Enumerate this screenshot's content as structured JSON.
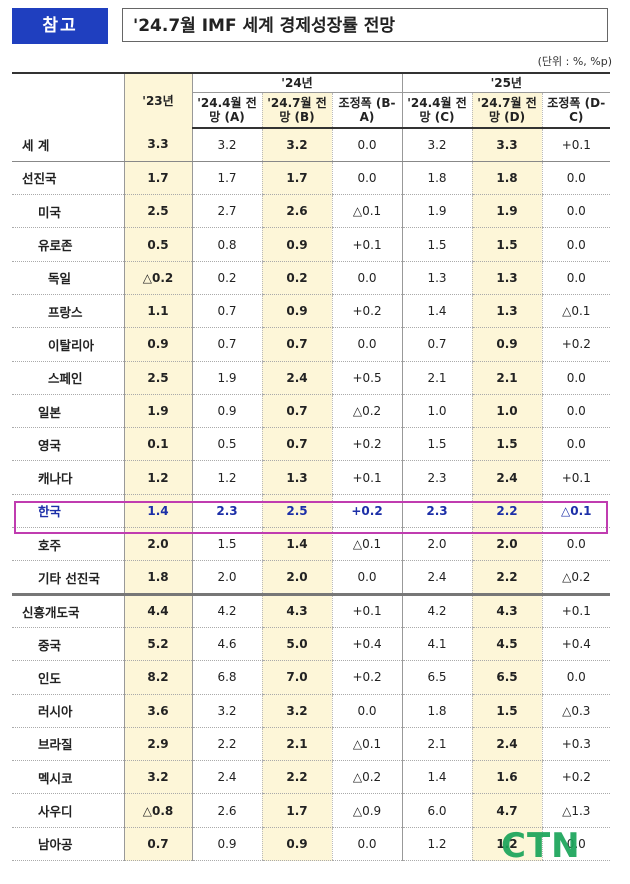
{
  "header": {
    "tag": "참고",
    "title": "'24.7월 IMF 세계 경제성장률 전망",
    "unit": "(단위 : %, %p)"
  },
  "columns": {
    "y23": "'23년",
    "y24": "'24년",
    "y25": "'25년",
    "c24a": "'24.4월 전망 (A)",
    "c24b": "'24.7월 전망 (B)",
    "c24d": "조정폭 (B-A)",
    "c25c": "'24.4월 전망 (C)",
    "c25d": "'24.7월 전망 (D)",
    "c25e": "조정폭 (D-C)"
  },
  "rows": [
    {
      "name": "세 계",
      "v": [
        "3.3",
        "3.2",
        "3.2",
        "0.0",
        "3.2",
        "3.3",
        "+0.1"
      ]
    },
    {
      "name": "선진국",
      "v": [
        "1.7",
        "1.7",
        "1.7",
        "0.0",
        "1.8",
        "1.8",
        "0.0"
      ]
    },
    {
      "name": "미국",
      "v": [
        "2.5",
        "2.7",
        "2.6",
        "△0.1",
        "1.9",
        "1.9",
        "0.0"
      ]
    },
    {
      "name": "유로존",
      "v": [
        "0.5",
        "0.8",
        "0.9",
        "+0.1",
        "1.5",
        "1.5",
        "0.0"
      ]
    },
    {
      "name": "독일",
      "v": [
        "△0.2",
        "0.2",
        "0.2",
        "0.0",
        "1.3",
        "1.3",
        "0.0"
      ]
    },
    {
      "name": "프랑스",
      "v": [
        "1.1",
        "0.7",
        "0.9",
        "+0.2",
        "1.4",
        "1.3",
        "△0.1"
      ]
    },
    {
      "name": "이탈리아",
      "v": [
        "0.9",
        "0.7",
        "0.7",
        "0.0",
        "0.7",
        "0.9",
        "+0.2"
      ]
    },
    {
      "name": "스페인",
      "v": [
        "2.5",
        "1.9",
        "2.4",
        "+0.5",
        "2.1",
        "2.1",
        "0.0"
      ]
    },
    {
      "name": "일본",
      "v": [
        "1.9",
        "0.9",
        "0.7",
        "△0.2",
        "1.0",
        "1.0",
        "0.0"
      ]
    },
    {
      "name": "영국",
      "v": [
        "0.1",
        "0.5",
        "0.7",
        "+0.2",
        "1.5",
        "1.5",
        "0.0"
      ]
    },
    {
      "name": "캐나다",
      "v": [
        "1.2",
        "1.2",
        "1.3",
        "+0.1",
        "2.3",
        "2.4",
        "+0.1"
      ]
    },
    {
      "name": "한국",
      "v": [
        "1.4",
        "2.3",
        "2.5",
        "+0.2",
        "2.3",
        "2.2",
        "△0.1"
      ]
    },
    {
      "name": "호주",
      "v": [
        "2.0",
        "1.5",
        "1.4",
        "△0.1",
        "2.0",
        "2.0",
        "0.0"
      ]
    },
    {
      "name": "기타 선진국",
      "v": [
        "1.8",
        "2.0",
        "2.0",
        "0.0",
        "2.4",
        "2.2",
        "△0.2"
      ]
    },
    {
      "name": "신흥개도국",
      "v": [
        "4.4",
        "4.2",
        "4.3",
        "+0.1",
        "4.2",
        "4.3",
        "+0.1"
      ]
    },
    {
      "name": "중국",
      "v": [
        "5.2",
        "4.6",
        "5.0",
        "+0.4",
        "4.1",
        "4.5",
        "+0.4"
      ]
    },
    {
      "name": "인도",
      "v": [
        "8.2",
        "6.8",
        "7.0",
        "+0.2",
        "6.5",
        "6.5",
        "0.0"
      ]
    },
    {
      "name": "러시아",
      "v": [
        "3.6",
        "3.2",
        "3.2",
        "0.0",
        "1.8",
        "1.5",
        "△0.3"
      ]
    },
    {
      "name": "브라질",
      "v": [
        "2.9",
        "2.2",
        "2.1",
        "△0.1",
        "2.1",
        "2.4",
        "+0.3"
      ]
    },
    {
      "name": "멕시코",
      "v": [
        "3.2",
        "2.4",
        "2.2",
        "△0.2",
        "1.4",
        "1.6",
        "+0.2"
      ]
    },
    {
      "name": "사우디",
      "v": [
        "△0.8",
        "2.6",
        "1.7",
        "△0.9",
        "6.0",
        "4.7",
        "△1.3"
      ]
    },
    {
      "name": "남아공",
      "v": [
        "0.7",
        "0.9",
        "0.9",
        "0.0",
        "1.2",
        "1.2",
        "0.0"
      ]
    }
  ],
  "watermark": "CTN"
}
